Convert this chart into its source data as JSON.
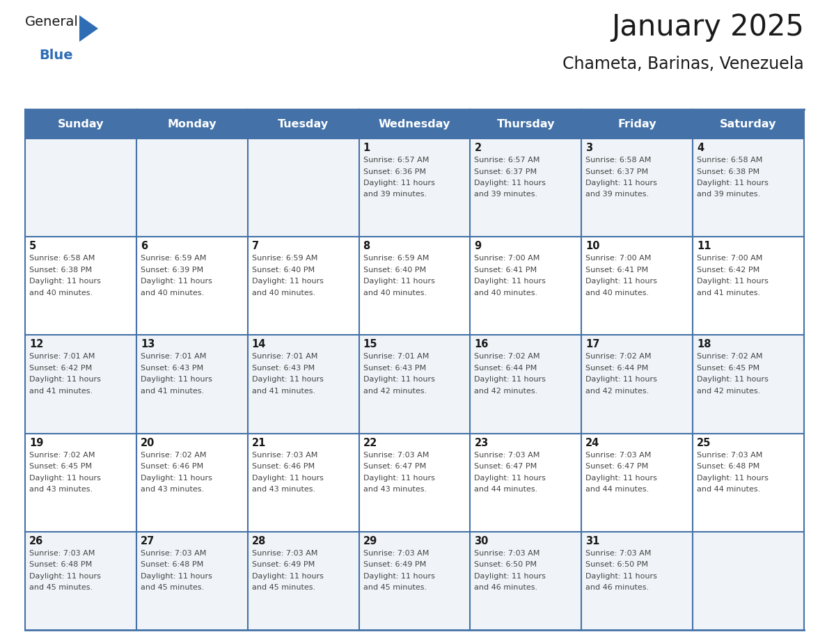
{
  "title": "January 2025",
  "subtitle": "Chameta, Barinas, Venezuela",
  "days_of_week": [
    "Sunday",
    "Monday",
    "Tuesday",
    "Wednesday",
    "Thursday",
    "Friday",
    "Saturday"
  ],
  "header_bg": "#4472a8",
  "header_text": "#ffffff",
  "cell_bg_odd": "#f0f4f8",
  "cell_bg_even": "#ffffff",
  "border_color": "#4472a8",
  "title_color": "#1a1a1a",
  "subtitle_color": "#1a1a1a",
  "cell_text_color": "#444444",
  "day_num_color": "#1a1a1a",
  "logo_general_color": "#1a1a1a",
  "logo_blue_color": "#2e6db4",
  "calendar_data": [
    [
      {
        "day": null
      },
      {
        "day": null
      },
      {
        "day": null
      },
      {
        "day": 1,
        "sunrise": "6:57 AM",
        "sunset": "6:36 PM",
        "daylight": "11 hours and 39 minutes."
      },
      {
        "day": 2,
        "sunrise": "6:57 AM",
        "sunset": "6:37 PM",
        "daylight": "11 hours and 39 minutes."
      },
      {
        "day": 3,
        "sunrise": "6:58 AM",
        "sunset": "6:37 PM",
        "daylight": "11 hours and 39 minutes."
      },
      {
        "day": 4,
        "sunrise": "6:58 AM",
        "sunset": "6:38 PM",
        "daylight": "11 hours and 39 minutes."
      }
    ],
    [
      {
        "day": 5,
        "sunrise": "6:58 AM",
        "sunset": "6:38 PM",
        "daylight": "11 hours and 40 minutes."
      },
      {
        "day": 6,
        "sunrise": "6:59 AM",
        "sunset": "6:39 PM",
        "daylight": "11 hours and 40 minutes."
      },
      {
        "day": 7,
        "sunrise": "6:59 AM",
        "sunset": "6:40 PM",
        "daylight": "11 hours and 40 minutes."
      },
      {
        "day": 8,
        "sunrise": "6:59 AM",
        "sunset": "6:40 PM",
        "daylight": "11 hours and 40 minutes."
      },
      {
        "day": 9,
        "sunrise": "7:00 AM",
        "sunset": "6:41 PM",
        "daylight": "11 hours and 40 minutes."
      },
      {
        "day": 10,
        "sunrise": "7:00 AM",
        "sunset": "6:41 PM",
        "daylight": "11 hours and 40 minutes."
      },
      {
        "day": 11,
        "sunrise": "7:00 AM",
        "sunset": "6:42 PM",
        "daylight": "11 hours and 41 minutes."
      }
    ],
    [
      {
        "day": 12,
        "sunrise": "7:01 AM",
        "sunset": "6:42 PM",
        "daylight": "11 hours and 41 minutes."
      },
      {
        "day": 13,
        "sunrise": "7:01 AM",
        "sunset": "6:43 PM",
        "daylight": "11 hours and 41 minutes."
      },
      {
        "day": 14,
        "sunrise": "7:01 AM",
        "sunset": "6:43 PM",
        "daylight": "11 hours and 41 minutes."
      },
      {
        "day": 15,
        "sunrise": "7:01 AM",
        "sunset": "6:43 PM",
        "daylight": "11 hours and 42 minutes."
      },
      {
        "day": 16,
        "sunrise": "7:02 AM",
        "sunset": "6:44 PM",
        "daylight": "11 hours and 42 minutes."
      },
      {
        "day": 17,
        "sunrise": "7:02 AM",
        "sunset": "6:44 PM",
        "daylight": "11 hours and 42 minutes."
      },
      {
        "day": 18,
        "sunrise": "7:02 AM",
        "sunset": "6:45 PM",
        "daylight": "11 hours and 42 minutes."
      }
    ],
    [
      {
        "day": 19,
        "sunrise": "7:02 AM",
        "sunset": "6:45 PM",
        "daylight": "11 hours and 43 minutes."
      },
      {
        "day": 20,
        "sunrise": "7:02 AM",
        "sunset": "6:46 PM",
        "daylight": "11 hours and 43 minutes."
      },
      {
        "day": 21,
        "sunrise": "7:03 AM",
        "sunset": "6:46 PM",
        "daylight": "11 hours and 43 minutes."
      },
      {
        "day": 22,
        "sunrise": "7:03 AM",
        "sunset": "6:47 PM",
        "daylight": "11 hours and 43 minutes."
      },
      {
        "day": 23,
        "sunrise": "7:03 AM",
        "sunset": "6:47 PM",
        "daylight": "11 hours and 44 minutes."
      },
      {
        "day": 24,
        "sunrise": "7:03 AM",
        "sunset": "6:47 PM",
        "daylight": "11 hours and 44 minutes."
      },
      {
        "day": 25,
        "sunrise": "7:03 AM",
        "sunset": "6:48 PM",
        "daylight": "11 hours and 44 minutes."
      }
    ],
    [
      {
        "day": 26,
        "sunrise": "7:03 AM",
        "sunset": "6:48 PM",
        "daylight": "11 hours and 45 minutes."
      },
      {
        "day": 27,
        "sunrise": "7:03 AM",
        "sunset": "6:48 PM",
        "daylight": "11 hours and 45 minutes."
      },
      {
        "day": 28,
        "sunrise": "7:03 AM",
        "sunset": "6:49 PM",
        "daylight": "11 hours and 45 minutes."
      },
      {
        "day": 29,
        "sunrise": "7:03 AM",
        "sunset": "6:49 PM",
        "daylight": "11 hours and 45 minutes."
      },
      {
        "day": 30,
        "sunrise": "7:03 AM",
        "sunset": "6:50 PM",
        "daylight": "11 hours and 46 minutes."
      },
      {
        "day": 31,
        "sunrise": "7:03 AM",
        "sunset": "6:50 PM",
        "daylight": "11 hours and 46 minutes."
      },
      {
        "day": null
      }
    ]
  ]
}
